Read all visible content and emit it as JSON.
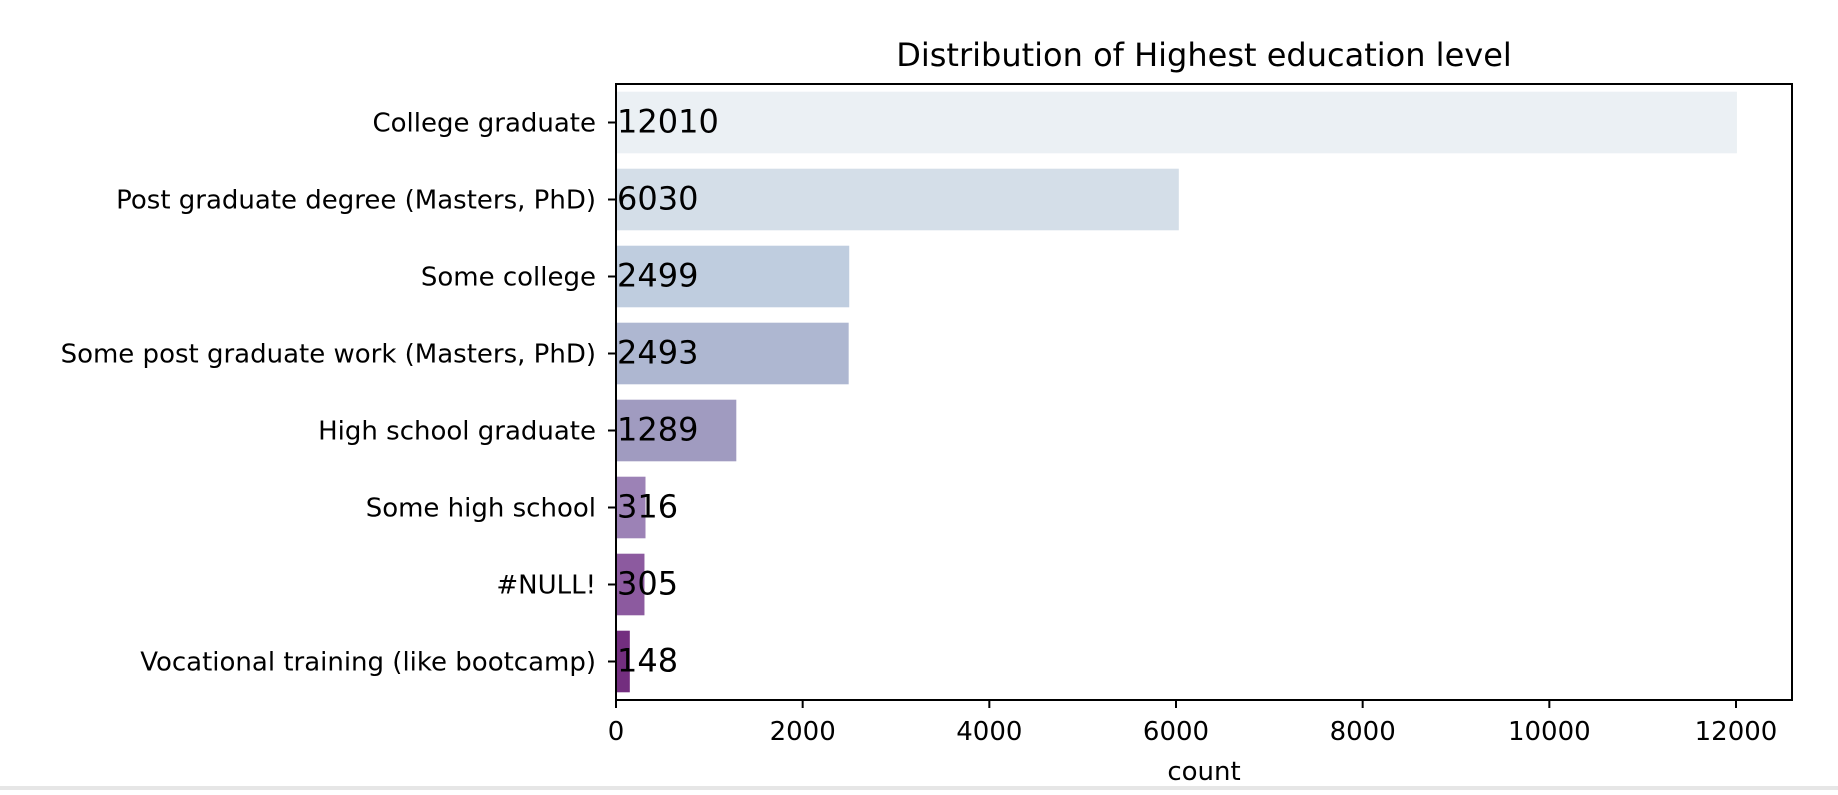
{
  "chart_data": {
    "type": "bar",
    "orientation": "horizontal",
    "title": "Distribution of Highest education level",
    "xlabel": "count",
    "ylabel": "",
    "categories": [
      "College graduate",
      "Post graduate degree (Masters, PhD)",
      "Some college",
      "Some post graduate work (Masters, PhD)",
      "High school graduate",
      "Some high school",
      "#NULL!",
      "Vocational training (like bootcamp)"
    ],
    "values": [
      12010,
      6030,
      2499,
      2493,
      1289,
      316,
      305,
      148
    ],
    "value_labels": [
      "12010",
      "6030",
      "2499",
      "2493",
      "1289",
      "316",
      "305",
      "148"
    ],
    "xlim": [
      0,
      12600
    ],
    "xticks": [
      0,
      2000,
      4000,
      6000,
      8000,
      10000,
      12000
    ],
    "xtick_labels": [
      "0",
      "2000",
      "4000",
      "6000",
      "8000",
      "10000",
      "12000"
    ],
    "grid": false,
    "colors": [
      "#ebf0f4",
      "#d4dee8",
      "#bfcddf",
      "#aeb7d1",
      "#a09bc0",
      "#9c82b6",
      "#8c5a9f",
      "#732e7f"
    ]
  }
}
